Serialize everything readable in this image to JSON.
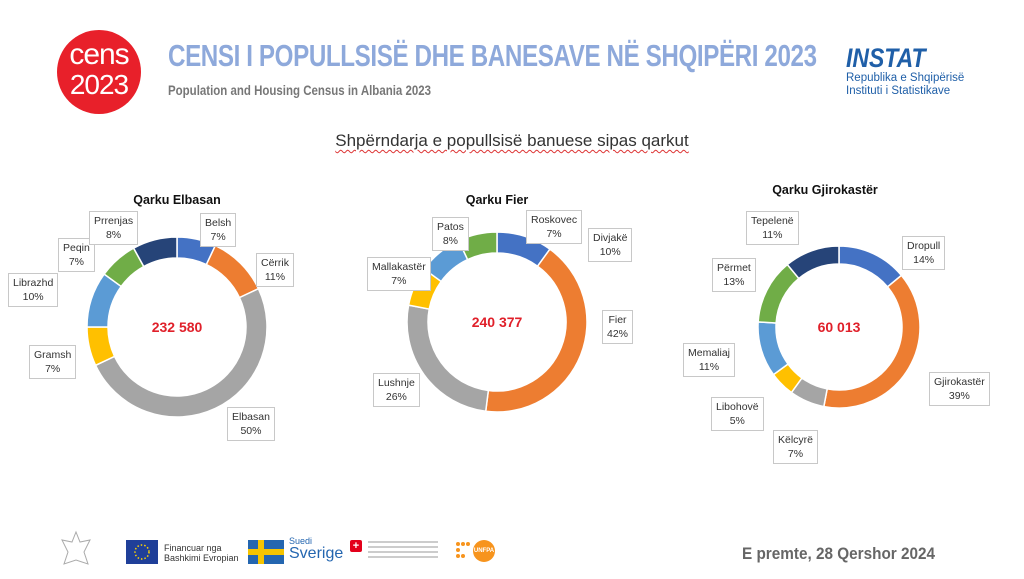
{
  "header": {
    "logo_line1": "cens",
    "logo_line2": "2023",
    "title": "CENSI I POPULLSISË DHE BANESAVE NË SHQIPËRI 2023",
    "subtitle": "Population and Housing Census in Albania 2023",
    "instat_name": "INSTAT",
    "instat_line1": "Republika e Shqipërisë",
    "instat_line2": "Instituti i Statistikave"
  },
  "section_title": "Shpërndarja e popullsisë banuese sipas qarkut",
  "colors": [
    "#4472C4",
    "#ED7D31",
    "#A5A5A5",
    "#FFC000",
    "#5B9BD5",
    "#70AD47",
    "#264478"
  ],
  "chart_data": [
    {
      "type": "pie",
      "variant": "donut",
      "title": "Qarku Elbasan",
      "total": "232 580",
      "categories": [
        "Belsh",
        "Cërrik",
        "Elbasan",
        "Gramsh",
        "Librazhd",
        "Peqin",
        "Prrenjas"
      ],
      "values": [
        7,
        11,
        50,
        7,
        10,
        7,
        8
      ],
      "labels": [
        "7%",
        "11%",
        "50%",
        "7%",
        "10%",
        "7%",
        "8%"
      ]
    },
    {
      "type": "pie",
      "variant": "donut",
      "title": "Qarku Fier",
      "total": "240 377",
      "categories": [
        "Divjakë",
        "Fier",
        "Lushnje",
        "Mallakastër",
        "Patos",
        "Roskovec"
      ],
      "values": [
        10,
        42,
        26,
        7,
        8,
        7
      ],
      "labels": [
        "10%",
        "42%",
        "26%",
        "7%",
        "8%",
        "7%"
      ]
    },
    {
      "type": "pie",
      "variant": "donut",
      "title": "Qarku Gjirokastër",
      "total": "60 013",
      "categories": [
        "Dropull",
        "Gjirokastër",
        "Këlcyrë",
        "Libohovë",
        "Memaliaj",
        "Përmet",
        "Tepelenë"
      ],
      "values": [
        14,
        39,
        7,
        5,
        11,
        13,
        11
      ],
      "labels": [
        "14%",
        "39%",
        "7%",
        "5%",
        "11%",
        "13%",
        "11%"
      ]
    }
  ],
  "footer": {
    "eu_text_1": "Financuar nga",
    "eu_text_2": "Bashkimi Evropian",
    "sweden_small": "Suedi",
    "sweden_big": "Sverige",
    "unfpa": "UNFPA",
    "date": "E premte, 28 Qershor 2024"
  }
}
